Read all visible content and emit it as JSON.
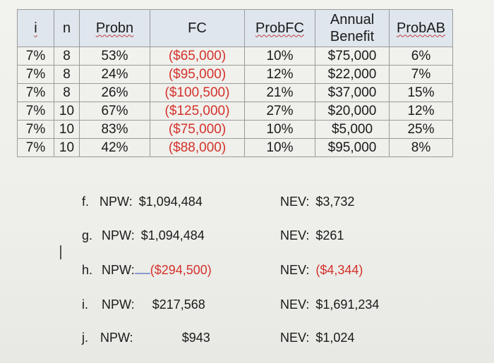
{
  "table": {
    "headers": {
      "i": "i",
      "n": "n",
      "prob_n": "Probn",
      "fc": "FC",
      "prob_fc": "ProbFC",
      "annual_benefit_line1": "Annual",
      "annual_benefit_line2": "Benefit",
      "prob_ab": "ProbAB"
    },
    "rows": [
      {
        "i": "7%",
        "n": "8",
        "prob_n": "53%",
        "fc": "($65,000)",
        "prob_fc": "10%",
        "benefit": "$75,000",
        "prob_ab": "6%"
      },
      {
        "i": "7%",
        "n": "8",
        "prob_n": "24%",
        "fc": "($95,000)",
        "prob_fc": "12%",
        "benefit": "$22,000",
        "prob_ab": "7%"
      },
      {
        "i": "7%",
        "n": "8",
        "prob_n": "26%",
        "fc": "($100,500)",
        "prob_fc": "21%",
        "benefit": "$37,000",
        "prob_ab": "15%"
      },
      {
        "i": "7%",
        "n": "10",
        "prob_n": "67%",
        "fc": "($125,000)",
        "prob_fc": "27%",
        "benefit": "$20,000",
        "prob_ab": "12%"
      },
      {
        "i": "7%",
        "n": "10",
        "prob_n": "83%",
        "fc": "($75,000)",
        "prob_fc": "10%",
        "benefit": "$5,000",
        "prob_ab": "25%"
      },
      {
        "i": "7%",
        "n": "10",
        "prob_n": "42%",
        "fc": "($88,000)",
        "prob_fc": "10%",
        "benefit": "$95,000",
        "prob_ab": "8%"
      }
    ]
  },
  "answers": [
    {
      "label": "f.",
      "npw_label": "NPW:",
      "npw": "$1,094,484",
      "nev_label": "NEV:",
      "nev": "$3,732"
    },
    {
      "label": "g.",
      "npw_label": "NPW:",
      "npw": "$1,094,484",
      "nev_label": "NEV:",
      "nev": "$261"
    },
    {
      "label": "h.",
      "npw_label": "NPW:",
      "npw": "($294,500)",
      "nev_label": "NEV:",
      "nev": "($4,344)"
    },
    {
      "label": "i.",
      "npw_label": "NPW:",
      "npw": "$217,568",
      "nev_label": "NEV:",
      "nev": "$1,691,234"
    },
    {
      "label": "j.",
      "npw_label": "NPW:",
      "npw": "$943",
      "nev_label": "NEV:",
      "nev": "$1,024"
    }
  ],
  "colors": {
    "negative": "#d4322b",
    "header_bg": "#dfe6ee",
    "text": "#1a1a1a"
  }
}
